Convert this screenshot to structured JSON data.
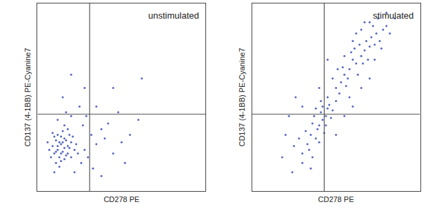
{
  "chart_data": [
    {
      "type": "scatter",
      "title": "unstimulated",
      "x_label": "CD278 PE",
      "y_label": "CD137 (4-1BB) PE-Cyanine7",
      "color": "#2b3fae",
      "marker": "dot",
      "xlim": [
        0,
        100
      ],
      "ylim": [
        0,
        100
      ],
      "tick_labels": false,
      "gates": {
        "x": 31,
        "y": 41
      },
      "x": [
        10,
        12,
        14,
        16,
        18,
        13,
        11,
        15,
        17,
        19,
        9,
        12,
        14,
        16,
        20,
        8,
        13,
        15,
        18,
        11,
        22,
        10,
        17,
        14,
        12,
        16,
        19,
        21,
        7,
        15,
        13,
        18,
        9,
        20,
        23,
        11,
        16,
        24,
        6,
        14,
        28,
        32,
        26,
        35,
        30,
        40,
        45,
        27,
        38,
        50,
        33,
        42,
        55,
        29,
        20,
        12,
        17,
        25,
        48,
        60,
        22,
        10,
        35,
        15,
        28,
        45,
        62,
        20,
        38,
        52
      ],
      "values": [
        20,
        22,
        25,
        28,
        24,
        18,
        27,
        21,
        19,
        30,
        24,
        30,
        16,
        23,
        26,
        18,
        26,
        32,
        20,
        15,
        22,
        29,
        27,
        20,
        24,
        17,
        23,
        29,
        22,
        26,
        13,
        33,
        31,
        18,
        25,
        21,
        35,
        20,
        26,
        29,
        22,
        30,
        15,
        25,
        18,
        28,
        20,
        35,
        33,
        26,
        12,
        36,
        30,
        40,
        40,
        38,
        42,
        45,
        42,
        38,
        10,
        10,
        45,
        50,
        55,
        55,
        60,
        62,
        8,
        15
      ]
    },
    {
      "type": "scatter",
      "title": "stimulated",
      "x_label": "CD278 PE",
      "y_label": "CD137 (4-1BB) PE-Cyanine7",
      "color": "#2b3fae",
      "marker": "dot",
      "xlim": [
        0,
        100
      ],
      "ylim": [
        0,
        100
      ],
      "tick_labels": false,
      "gates": {
        "x": 43,
        "y": 41
      },
      "x": [
        30,
        33,
        35,
        38,
        40,
        42,
        44,
        41,
        45,
        39,
        36,
        43,
        47,
        34,
        37,
        40,
        46,
        44,
        38,
        42,
        32,
        28,
        30,
        36,
        25,
        48,
        45,
        41,
        50,
        35,
        50,
        53,
        55,
        52,
        57,
        54,
        58,
        60,
        56,
        62,
        59,
        63,
        61,
        65,
        64,
        67,
        66,
        68,
        70,
        62,
        69,
        71,
        73,
        65,
        72,
        74,
        76,
        70,
        75,
        78,
        80,
        77,
        67,
        82,
        60,
        55,
        58,
        48,
        51,
        73,
        20,
        22,
        30,
        26,
        55,
        60,
        65,
        50,
        85,
        80,
        45,
        40,
        24,
        18,
        70
      ],
      "values": [
        20,
        25,
        30,
        28,
        35,
        38,
        40,
        42,
        44,
        33,
        36,
        31,
        39,
        22,
        40,
        26,
        46,
        35,
        44,
        45,
        32,
        28,
        15,
        18,
        24,
        43,
        50,
        48,
        48,
        12,
        55,
        58,
        62,
        52,
        60,
        66,
        65,
        70,
        56,
        68,
        74,
        62,
        76,
        72,
        78,
        75,
        68,
        80,
        77,
        84,
        70,
        82,
        78,
        86,
        88,
        84,
        80,
        90,
        92,
        86,
        88,
        76,
        90,
        84,
        80,
        72,
        50,
        60,
        65,
        70,
        30,
        40,
        45,
        50,
        40,
        45,
        55,
        30,
        92,
        95,
        70,
        55,
        10,
        18,
        60
      ]
    }
  ]
}
